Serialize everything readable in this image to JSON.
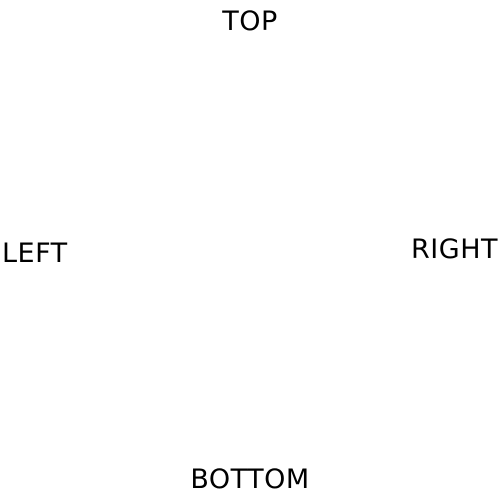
{
  "labels": {
    "top": "TOP",
    "left": "LEFT",
    "right": "RIGHT",
    "bottom": "BOTTOM"
  }
}
